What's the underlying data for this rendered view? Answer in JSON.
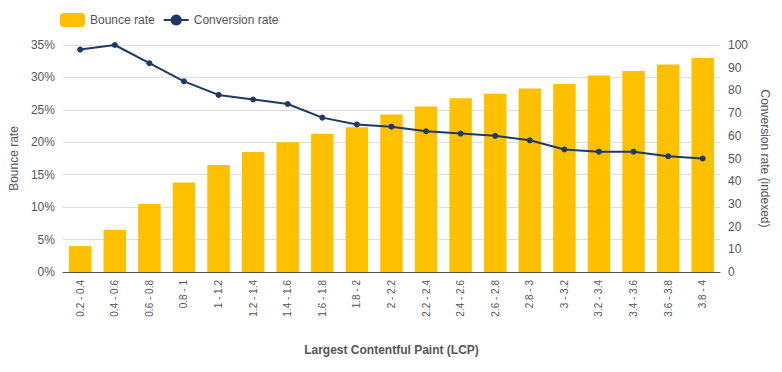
{
  "chart_data": {
    "type": "bar",
    "xlabel": "Largest Contentful Paint (LCP)",
    "ylabel": "Bounce rate",
    "y2label": "Conversion rate (indexed)",
    "categories": [
      "0.2 - 0.4",
      "0.4 - 0.6",
      "0.6 - 0.8",
      "0.8 - 1",
      "1 - 1.2",
      "1.2 - 1.4",
      "1.4 - 1.6",
      "1.6 - 1.8",
      "1.8 - 2",
      "2 - 2.2",
      "2.2 - 2.4",
      "2.4 - 2.6",
      "2.6 - 2.8",
      "2.8 - 3",
      "3 - 3.2",
      "3.2 - 3.4",
      "3.4 - 3.6",
      "3.6 - 3.8",
      "3.8 - 4"
    ],
    "series": [
      {
        "name": "Bounce rate",
        "type": "bar",
        "color": "#FFC000",
        "values": [
          0.04,
          0.065,
          0.105,
          0.138,
          0.165,
          0.185,
          0.2,
          0.213,
          0.223,
          0.243,
          0.255,
          0.268,
          0.275,
          0.283,
          0.29,
          0.303,
          0.31,
          0.32,
          0.33
        ]
      },
      {
        "name": "Conversion rate",
        "type": "line",
        "color": "#1F3864",
        "marker": "circle",
        "axis": "y2",
        "values": [
          98,
          100,
          92,
          84,
          78,
          76,
          74,
          68,
          65,
          64,
          62,
          61,
          60,
          58,
          54,
          53,
          53,
          51,
          50
        ]
      }
    ],
    "ylim": [
      0,
      0.35
    ],
    "yticks": [
      {
        "value": 0.0,
        "label": "0%"
      },
      {
        "value": 0.05,
        "label": "5%"
      },
      {
        "value": 0.1,
        "label": "10%"
      },
      {
        "value": 0.15,
        "label": "15%"
      },
      {
        "value": 0.2,
        "label": "20%"
      },
      {
        "value": 0.25,
        "label": "25%"
      },
      {
        "value": 0.3,
        "label": "30%"
      },
      {
        "value": 0.35,
        "label": "35%"
      }
    ],
    "y2lim": [
      0,
      100
    ],
    "y2ticks": [
      0,
      10,
      20,
      30,
      40,
      50,
      60,
      70,
      80,
      90,
      100
    ],
    "grid": true,
    "legend": "upper left"
  }
}
